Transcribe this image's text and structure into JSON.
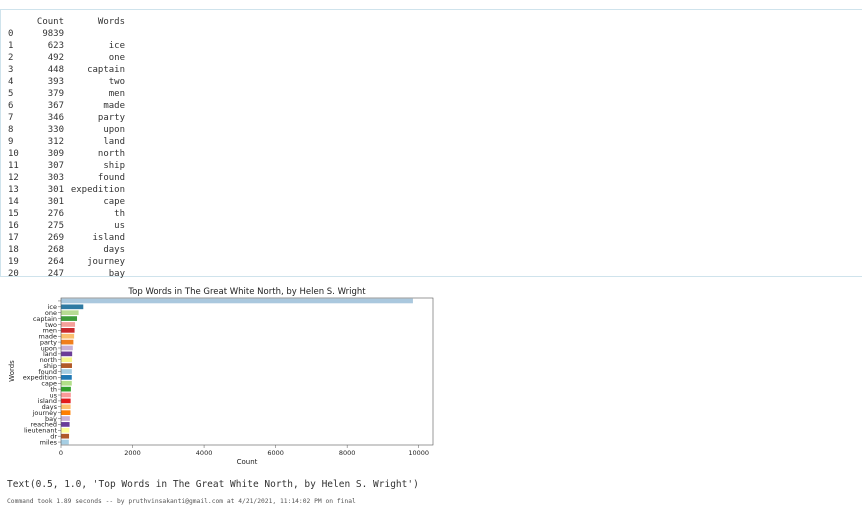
{
  "dataframe": {
    "headers": {
      "index": "",
      "count": "Count",
      "words": "Words"
    },
    "rows": [
      {
        "i": "0",
        "count": "9839",
        "word": ""
      },
      {
        "i": "1",
        "count": "623",
        "word": "ice"
      },
      {
        "i": "2",
        "count": "492",
        "word": "one"
      },
      {
        "i": "3",
        "count": "448",
        "word": "captain"
      },
      {
        "i": "4",
        "count": "393",
        "word": "two"
      },
      {
        "i": "5",
        "count": "379",
        "word": "men"
      },
      {
        "i": "6",
        "count": "367",
        "word": "made"
      },
      {
        "i": "7",
        "count": "346",
        "word": "party"
      },
      {
        "i": "8",
        "count": "330",
        "word": "upon"
      },
      {
        "i": "9",
        "count": "312",
        "word": "land"
      },
      {
        "i": "10",
        "count": "309",
        "word": "north"
      },
      {
        "i": "11",
        "count": "307",
        "word": "ship"
      },
      {
        "i": "12",
        "count": "303",
        "word": "found"
      },
      {
        "i": "13",
        "count": "301",
        "word": "expedition"
      },
      {
        "i": "14",
        "count": "301",
        "word": "cape"
      },
      {
        "i": "15",
        "count": "276",
        "word": "th"
      },
      {
        "i": "16",
        "count": "275",
        "word": "us"
      },
      {
        "i": "17",
        "count": "269",
        "word": "island"
      },
      {
        "i": "18",
        "count": "268",
        "word": "days"
      },
      {
        "i": "19",
        "count": "264",
        "word": "journey"
      },
      {
        "i": "20",
        "count": "247",
        "word": "bay"
      }
    ]
  },
  "chart_data": {
    "type": "bar",
    "orientation": "horizontal",
    "title": "Top Words in The Great White North, by Helen S. Wright",
    "xlabel": "Count",
    "ylabel": "Words",
    "xlim": [
      0,
      10400
    ],
    "xticks": [
      0,
      2000,
      4000,
      6000,
      8000,
      10000
    ],
    "grid": false,
    "categories": [
      "",
      "ice",
      "one",
      "captain",
      "two",
      "men",
      "made",
      "party",
      "upon",
      "land",
      "north",
      "ship",
      "found",
      "expedition",
      "cape",
      "th",
      "us",
      "island",
      "days",
      "journey",
      "bay",
      "reached",
      "lieutenant",
      "dr",
      "miles"
    ],
    "values": [
      9839,
      623,
      492,
      448,
      393,
      379,
      367,
      346,
      330,
      312,
      309,
      307,
      303,
      301,
      301,
      276,
      275,
      269,
      268,
      264,
      247,
      240,
      232,
      225,
      219
    ],
    "colors": [
      "#aac8de",
      "#2f7aa3",
      "#b6db94",
      "#3e9c3a",
      "#f5a09a",
      "#c9282c",
      "#fbbf6f",
      "#f07f1c",
      "#c8b0d6",
      "#6b3d98",
      "#f7f78e",
      "#b15928",
      "#a6cee3",
      "#1f78b4",
      "#b2df8a",
      "#33a02c",
      "#fb9a99",
      "#e31a1c",
      "#fdbf6f",
      "#ff7f00",
      "#cab2d6",
      "#6a3d9a",
      "#ffff99",
      "#b15928",
      "#a6cee3"
    ]
  },
  "output": {
    "result_text": "Text(0.5, 1.0, 'Top Words in The Great White North, by Helen S. Wright')",
    "footer": "Command took 1.89 seconds -- by pruthvinsakanti@gmail.com at 4/21/2021, 11:14:02 PM on final"
  }
}
